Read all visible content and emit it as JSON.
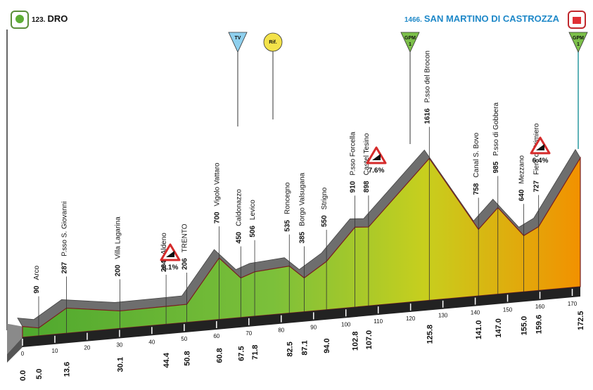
{
  "chart_data": {
    "type": "area",
    "categories": [
      "DRO",
      "Arco",
      "P.sso S. Giovanni",
      "Villa Lagarina",
      "Aldeno",
      "TRENTO",
      "Vigolo Vattaro",
      "Caldonazzo",
      "Levico",
      "Roncegno",
      "Borgo Valsugana",
      "Strigno",
      "P.sso Forcella",
      "Castel Tesino",
      "P.sso del Brocon",
      "Canal S. Bovo",
      "P.sso di Gobbera",
      "Mezzano",
      "Fiera di Primiero",
      "SAN MARTINO DI CASTROZZA"
    ],
    "x": [
      0,
      5,
      13.6,
      30.1,
      44.4,
      50.8,
      60.8,
      67.5,
      71.8,
      82.5,
      87.1,
      94,
      102.8,
      107,
      125.8,
      141,
      147,
      155,
      159.6,
      172.5
    ],
    "x_labels": [
      "0.0",
      "5.0",
      "13.6",
      "30.1",
      "44.4",
      "50.8",
      "60.8",
      "67.5",
      "71.8",
      "82.5",
      "87.1",
      "94.0",
      "102.8",
      "107.0",
      "125.8",
      "141.0",
      "147.0",
      "155.0",
      "159.6",
      "172.5"
    ],
    "values": [
      123,
      90,
      287,
      200,
      204,
      206,
      700,
      450,
      506,
      535,
      385,
      550,
      910,
      898,
      1616,
      758,
      985,
      640,
      727,
      1466
    ],
    "value_labels": [
      "123.",
      "90",
      "287",
      "200",
      "204",
      "206",
      "700",
      "450",
      "506",
      "535",
      "385",
      "550",
      "910",
      "898",
      "1616",
      "758",
      "985",
      "640",
      "727",
      "1466."
    ],
    "xlim": [
      0,
      172.5
    ],
    "ylim": [
      0,
      1800
    ],
    "xticks": [
      0,
      10,
      20,
      30,
      40,
      50,
      60,
      70,
      80,
      90,
      100,
      110,
      120,
      130,
      140,
      150,
      160,
      170
    ],
    "markers": [
      {
        "label": "TV"
      },
      {
        "label": "Rif."
      },
      {
        "label": "GPM",
        "category": "1"
      },
      {
        "label": "GPM",
        "category": "1"
      }
    ],
    "gradients": [
      "6.1%",
      "7.6%",
      "6.4%"
    ]
  }
}
